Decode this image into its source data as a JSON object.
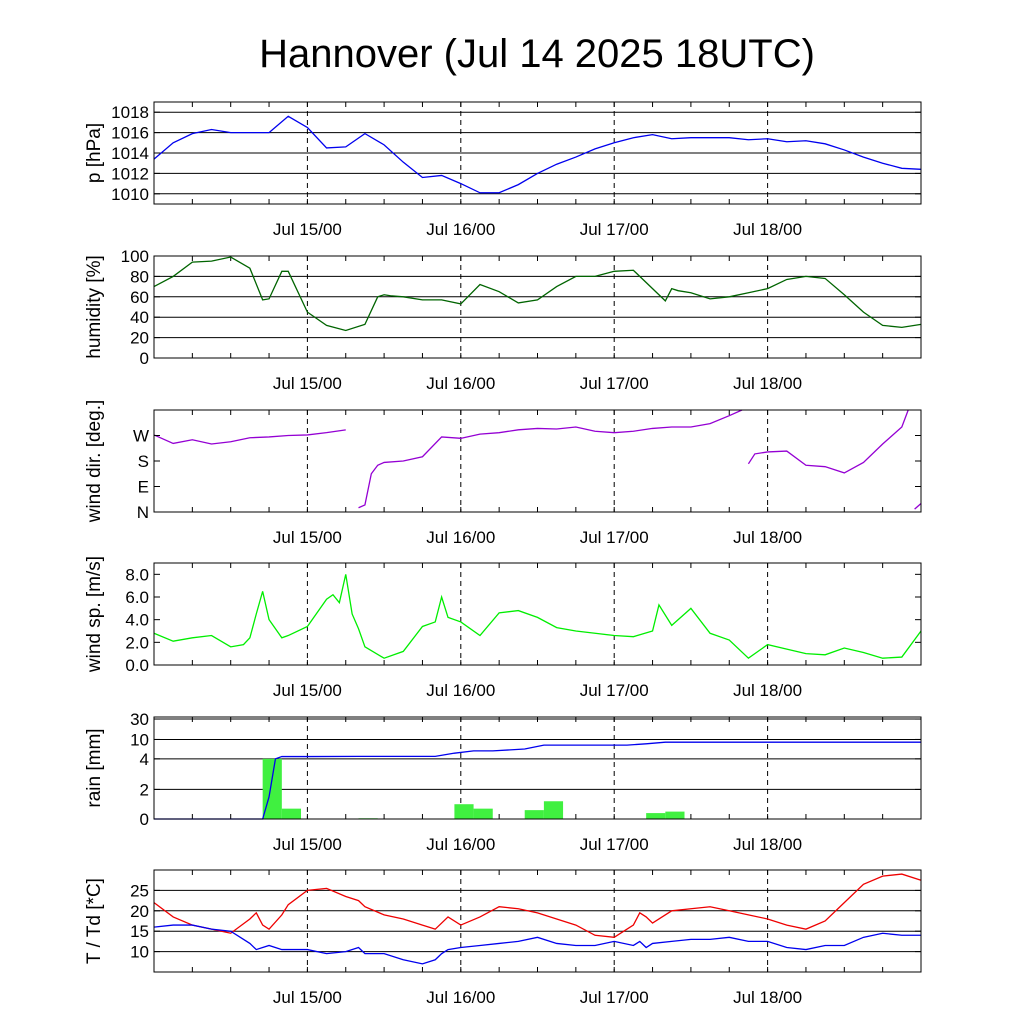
{
  "title": "Hannover (Jul 14 2025 18UTC)",
  "x_tick_labels": [
    "Jul 15/00",
    "Jul 16/00",
    "Jul 17/00",
    "Jul 18/00"
  ],
  "colors": {
    "pressure": "#0000ee",
    "humidity": "#006400",
    "wind_dir": "#9400d3",
    "wind_speed": "#00ee00",
    "rain_cumulative": "#0000ee",
    "rain_bars": "#40f040",
    "temperature": "#ee0000",
    "dewpoint": "#0000ee"
  },
  "chart_data": [
    {
      "type": "line",
      "ylabel": "p [hPa]",
      "ylim": [
        1009,
        1019
      ],
      "yticks": [
        1010,
        1012,
        1014,
        1016,
        1018
      ],
      "ytick_labels": [
        "1010",
        "1012",
        "1014",
        "1016",
        "1018"
      ],
      "grid": "horizontal",
      "x_hours": [
        0,
        3,
        6,
        9,
        12,
        15,
        18,
        21,
        24,
        27,
        30,
        33,
        36,
        39,
        42,
        45,
        48,
        51,
        54,
        57,
        60,
        63,
        66,
        69,
        72,
        75,
        78,
        81,
        84,
        87,
        90,
        93,
        96,
        99,
        102,
        105,
        108,
        111,
        114,
        117,
        120
      ],
      "series": [
        {
          "values": [
            1013.4,
            1015.0,
            1015.9,
            1016.3,
            1016.0,
            1016.0,
            1016.0,
            1017.6,
            1016.5,
            1014.5,
            1014.6,
            1015.9,
            1014.8,
            1013.1,
            1011.6,
            1011.8,
            1011.0,
            1010.1,
            1010.1,
            1010.9,
            1012.0,
            1012.9,
            1013.6,
            1014.4,
            1015.0,
            1015.5,
            1015.8,
            1015.4,
            1015.5,
            1015.5,
            1015.5,
            1015.3,
            1015.4,
            1015.1,
            1015.2,
            1014.9,
            1014.3,
            1013.6,
            1013.0,
            1012.5,
            1012.4
          ]
        }
      ]
    },
    {
      "type": "line",
      "ylabel": "humidity [%]",
      "ylim": [
        0,
        100
      ],
      "yticks": [
        0,
        20,
        40,
        60,
        80,
        100
      ],
      "ytick_labels": [
        "0",
        "20",
        "40",
        "60",
        "80",
        "100"
      ],
      "grid": "horizontal",
      "x_hours": [
        0,
        3,
        6,
        9,
        12,
        15,
        17,
        18,
        20,
        21,
        24,
        27,
        30,
        33,
        35,
        36,
        37,
        39,
        42,
        45,
        48,
        51,
        54,
        57,
        60,
        63,
        66,
        69,
        72,
        75,
        78,
        80,
        81,
        82,
        84,
        87,
        90,
        93,
        96,
        99,
        102,
        105,
        108,
        111,
        114,
        117,
        120
      ],
      "series": [
        {
          "values": [
            70,
            80,
            94,
            95,
            99,
            88,
            57,
            58,
            85,
            85,
            45,
            32,
            27,
            33,
            60,
            62,
            61,
            60,
            57,
            57,
            53,
            72,
            65,
            54,
            57,
            70,
            80,
            80,
            85,
            86,
            68,
            56,
            68,
            66,
            64,
            58,
            60,
            64,
            68,
            77,
            80,
            78,
            62,
            45,
            32,
            30,
            33
          ]
        }
      ]
    },
    {
      "type": "line",
      "ylabel": "wind dir. [deg.]",
      "ylim": [
        0,
        360
      ],
      "yticks": [
        0,
        90,
        180,
        270
      ],
      "ytick_labels": [
        "N",
        "E",
        "S",
        "W"
      ],
      "grid": "none",
      "x_hours": [
        0,
        3,
        6,
        9,
        12,
        15,
        18,
        21,
        24,
        27,
        30,
        32,
        33,
        34,
        35,
        36,
        39,
        42,
        45,
        48,
        51,
        54,
        57,
        60,
        63,
        66,
        69,
        72,
        75,
        78,
        81,
        84,
        87,
        90,
        92,
        93,
        94,
        96,
        99,
        102,
        105,
        108,
        111,
        114,
        117,
        118,
        119,
        120
      ],
      "series": [
        {
          "values": [
            272,
            242,
            255,
            240,
            248,
            262,
            265,
            270,
            272,
            280,
            290,
            15,
            25,
            135,
            165,
            175,
            180,
            195,
            265,
            260,
            275,
            280,
            290,
            295,
            293,
            300,
            285,
            280,
            285,
            295,
            300,
            300,
            312,
            340,
            360,
            170,
            205,
            212,
            215,
            165,
            160,
            138,
            175,
            240,
            300,
            360,
            10,
            30
          ]
        }
      ]
    },
    {
      "type": "line",
      "ylabel": "wind sp. [m/s]",
      "ylim": [
        0,
        9
      ],
      "yticks": [
        0,
        2,
        4,
        6,
        8
      ],
      "ytick_labels": [
        "0.0",
        "2.0",
        "4.0",
        "6.0",
        "8.0"
      ],
      "grid": "none",
      "x_hours": [
        0,
        3,
        6,
        9,
        12,
        14,
        15,
        16,
        17,
        18,
        20,
        21,
        24,
        27,
        28,
        29,
        30,
        31,
        32,
        33,
        36,
        39,
        42,
        44,
        45,
        46,
        48,
        51,
        54,
        57,
        60,
        63,
        66,
        69,
        72,
        75,
        78,
        79,
        81,
        84,
        87,
        90,
        93,
        96,
        99,
        102,
        105,
        108,
        111,
        114,
        117,
        120
      ],
      "series": [
        {
          "values": [
            2.8,
            2.1,
            2.4,
            2.6,
            1.6,
            1.8,
            2.4,
            4.5,
            6.5,
            4.0,
            2.4,
            2.6,
            3.4,
            5.8,
            6.2,
            5.5,
            8.0,
            4.5,
            3.2,
            1.6,
            0.6,
            1.2,
            3.4,
            3.8,
            6.0,
            4.2,
            3.8,
            2.6,
            4.6,
            4.8,
            4.2,
            3.3,
            3.0,
            2.8,
            2.6,
            2.5,
            3.0,
            5.3,
            3.5,
            5.0,
            2.8,
            2.2,
            0.6,
            1.8,
            1.4,
            1.0,
            0.9,
            1.5,
            1.1,
            0.6,
            0.7,
            3.0
          ]
        }
      ]
    },
    {
      "type": "bar",
      "ylabel": "rain [mm]",
      "yticks": [
        0,
        2,
        4,
        10,
        30
      ],
      "ytick_labels": [
        "0",
        "2",
        "4",
        "10",
        "30"
      ],
      "grid": "horizontal",
      "bars": {
        "start_hours": [
          17,
          20,
          32,
          47,
          50,
          58,
          61,
          77,
          80
        ],
        "values": [
          4.0,
          0.7,
          0.05,
          1.0,
          0.7,
          0.6,
          1.2,
          0.4,
          0.5
        ]
      },
      "cumulative_x_hours": [
        0,
        17,
        18,
        19,
        20,
        24,
        32,
        44,
        47,
        50,
        53,
        58,
        61,
        64,
        74,
        77,
        80,
        83,
        120
      ],
      "cumulative_values": [
        0,
        0,
        1.5,
        4.0,
        4.7,
        4.7,
        4.75,
        4.75,
        5.75,
        6.45,
        6.45,
        7.05,
        8.25,
        8.25,
        8.25,
        8.65,
        9.15,
        9.15,
        9.15
      ]
    },
    {
      "type": "line",
      "ylabel": "T / Td [*C]",
      "ylim": [
        5,
        30
      ],
      "yticks": [
        10,
        15,
        20,
        25
      ],
      "ytick_labels": [
        "10",
        "15",
        "20",
        "25"
      ],
      "grid": "horizontal",
      "x_hours": [
        0,
        3,
        6,
        9,
        12,
        15,
        16,
        17,
        18,
        20,
        21,
        24,
        27,
        30,
        32,
        33,
        36,
        39,
        42,
        44,
        45,
        46,
        48,
        51,
        54,
        57,
        60,
        63,
        66,
        69,
        72,
        75,
        76,
        77,
        78,
        81,
        84,
        87,
        90,
        93,
        96,
        99,
        102,
        105,
        108,
        111,
        114,
        117,
        120
      ],
      "series": [
        {
          "name": "T",
          "values": [
            22,
            18.5,
            16.5,
            15.5,
            14.5,
            18,
            19.5,
            16.5,
            15.5,
            19,
            21.5,
            25,
            25.5,
            23.5,
            22.5,
            21,
            19,
            18,
            16.5,
            15.5,
            17,
            18.5,
            16.5,
            18.5,
            21,
            20.5,
            19.5,
            18,
            16.5,
            14,
            13.5,
            16.5,
            19.5,
            18.5,
            17,
            20,
            20.5,
            21,
            20,
            19,
            18,
            16.5,
            15.5,
            17.5,
            22,
            26.5,
            28.5,
            29,
            27.5
          ]
        },
        {
          "name": "Td",
          "values": [
            16,
            16.5,
            16.5,
            15.5,
            15,
            12,
            10.5,
            11,
            11.5,
            10.5,
            10.5,
            10.5,
            9.5,
            10,
            11,
            9.5,
            9.5,
            8,
            7,
            8,
            9.5,
            10.5,
            11,
            11.5,
            12,
            12.5,
            13.5,
            12,
            11.5,
            11.5,
            12.5,
            11.5,
            12.5,
            11,
            12,
            12.5,
            13,
            13,
            13.5,
            12.5,
            12.5,
            11,
            10.5,
            11.5,
            11.5,
            13.5,
            14.5,
            14,
            14
          ]
        }
      ]
    }
  ]
}
